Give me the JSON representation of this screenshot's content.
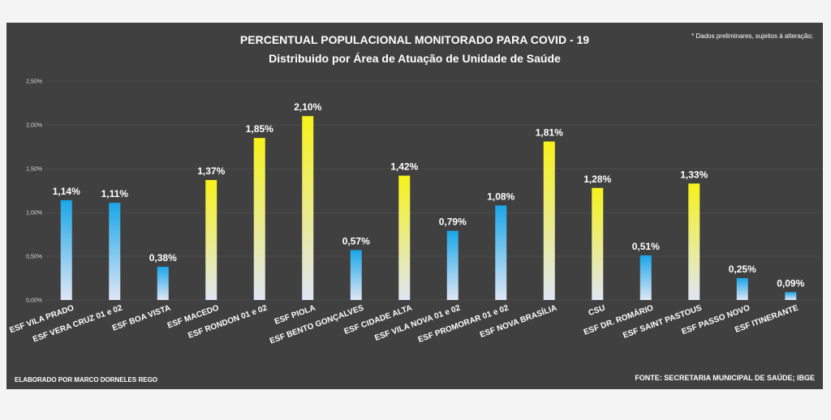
{
  "chart_data": {
    "type": "bar",
    "title": "PERCENTUAL POPULACIONAL MONITORADO PARA COVID - 19",
    "subtitle": "Distribuido por Área de Atuação de Unidade de Saúde",
    "note": "* Dados preliminares, sujeitos à alteração;",
    "credit": "ELABORADO POR MARCO DORNELES REGO",
    "source": "FONTE: SECRETARIA MUNICIPAL DE SAÚDE; IBGE",
    "ylim": [
      0,
      2.5
    ],
    "yticks": [
      "0,00%",
      "0,50%",
      "1,00%",
      "1,50%",
      "2,00%",
      "2,50%"
    ],
    "categories": [
      "ESF VILA PRADO",
      "ESF VERA CRUZ 01 e 02",
      "ESF BOA VISTA",
      "ESF MACEDO",
      "ESF RONDON 01 e 02",
      "ESF PIOLA",
      "ESF BENTO GONÇALVES",
      "ESF CIDADE ALTA",
      "ESF VILA NOVA 01 e 02",
      "ESF PROMORAR 01 e 02",
      "ESF NOVA BRASÍLIA",
      "CSU",
      "ESF DR. ROMÁRIO",
      "ESF SAINT PASTOUS",
      "ESF PASSO NOVO",
      "ESF ITINERANTE"
    ],
    "values": [
      1.14,
      1.11,
      0.38,
      1.37,
      1.85,
      2.1,
      0.57,
      1.42,
      0.79,
      1.08,
      1.81,
      1.28,
      0.51,
      1.33,
      0.25,
      0.09
    ],
    "labels": [
      "1,14%",
      "1,11%",
      "0,38%",
      "1,37%",
      "1,85%",
      "2,10%",
      "0,57%",
      "1,42%",
      "0,79%",
      "1,08%",
      "1,81%",
      "1,28%",
      "0,51%",
      "1,33%",
      "0,25%",
      "0,09%"
    ],
    "highlight": [
      false,
      false,
      false,
      true,
      true,
      true,
      false,
      true,
      false,
      false,
      true,
      true,
      false,
      true,
      false,
      false
    ],
    "colors": {
      "background": "#404040",
      "bar_blue_top": "#1aa6e8",
      "bar_yellow_top": "#f6f21a",
      "bar_bottom": "#dfe6f5",
      "gridline": "#5a5a5a"
    }
  }
}
